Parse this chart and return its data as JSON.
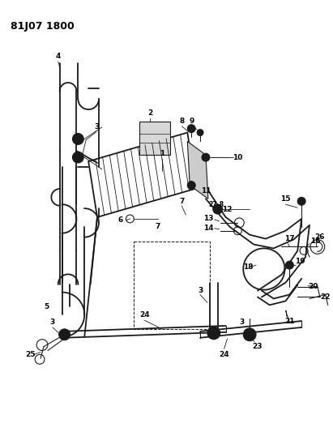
{
  "title": "81J07 1800",
  "bg": "#ffffff",
  "lc": "#1a1a1a",
  "tc": "#000000",
  "figsize": [
    4.11,
    5.33
  ],
  "dpi": 100
}
